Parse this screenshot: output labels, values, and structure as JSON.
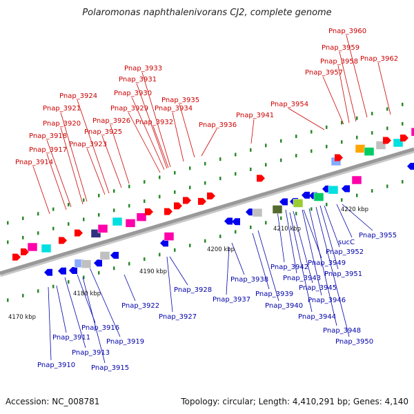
{
  "title": "Polaromonas naphthalenivorans CJ2, complete genome",
  "footer": {
    "accession": "Accession: NC_008781",
    "summary": "Topology: circular; Length: 4,410,291 bp; Genes: 4,140"
  },
  "colors": {
    "backbone": "#999999",
    "forward_label": "#cc0000",
    "reverse_label": "#0000aa",
    "forward_gene": "#ff0000",
    "reverse_gene": "#0000ee",
    "tick": "#2a8a2a"
  },
  "scale_ticks": [
    "4170 kbp",
    "4180 kbp",
    "4190 kbp",
    "4200 kbp",
    "4210 kbp",
    "4220 kbp"
  ],
  "forward_genes": [
    "Pnap_3914",
    "Pnap_3917",
    "Pnap_3918",
    "Pnap_3920",
    "Pnap_3921",
    "Pnap_3923",
    "Pnap_3924",
    "Pnap_3925",
    "Pnap_3926",
    "Pnap_3929",
    "Pnap_3930",
    "Pnap_3931",
    "Pnap_3932",
    "Pnap_3933",
    "Pnap_3934",
    "Pnap_3935",
    "Pnap_3936",
    "Pnap_3941",
    "Pnap_3954",
    "Pnap_3957",
    "Pnap_3958",
    "Pnap_3959",
    "Pnap_3960",
    "Pnap_3962"
  ],
  "reverse_genes": [
    "Pnap_3910",
    "Pnap_3911",
    "Pnap_3913",
    "Pnap_3915",
    "Pnap_3916",
    "Pnap_3919",
    "Pnap_3922",
    "Pnap_3927",
    "Pnap_3928",
    "Pnap_3937",
    "Pnap_3938",
    "Pnap_3939",
    "Pnap_3940",
    "Pnap_3942",
    "Pnap_3943",
    "Pnap_3944",
    "Pnap_3945",
    "Pnap_3946",
    "Pnap_3948",
    "Pnap_3949",
    "Pnap_3950",
    "Pnap_3951",
    "Pnap_3952",
    "sucC",
    "Pnap_3955"
  ]
}
